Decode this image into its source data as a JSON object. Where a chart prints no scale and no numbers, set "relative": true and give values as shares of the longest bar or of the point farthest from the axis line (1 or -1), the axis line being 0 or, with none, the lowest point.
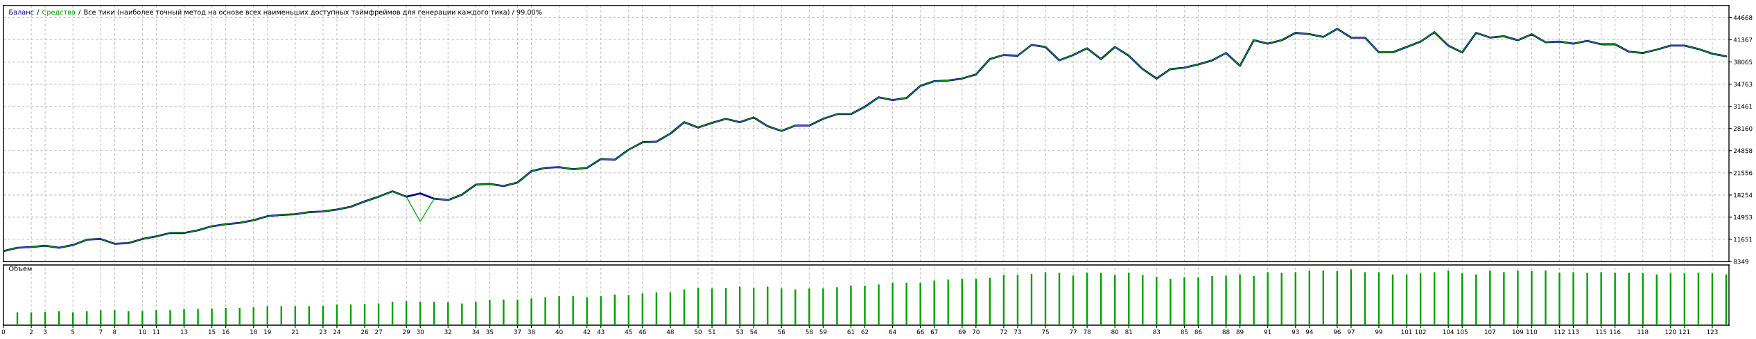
{
  "chart_data": [
    {
      "type": "line",
      "title": "Все тики (наиболее точный метод на основе всех наименьших доступных таймфреймов для генерации каждого тика) / 99.00%",
      "legend": "top left",
      "grid": true,
      "annotations": [
        "/",
        "/"
      ],
      "tick_labels": "y",
      "x": [
        0,
        1,
        2,
        3,
        4,
        5,
        6,
        7,
        8,
        9,
        10,
        11,
        12,
        13,
        14,
        15,
        16,
        17,
        18,
        19,
        20,
        21,
        22,
        23,
        24,
        25,
        26,
        27,
        28,
        29,
        30,
        31,
        32,
        33,
        34,
        35,
        36,
        37,
        38,
        39,
        40,
        41,
        42,
        43,
        44,
        45,
        46,
        47,
        48,
        49,
        50,
        51,
        52,
        53,
        54,
        55,
        56,
        57,
        58,
        59,
        60,
        61,
        62,
        63,
        64,
        65,
        66,
        67,
        68,
        69,
        70,
        71,
        72,
        73,
        74,
        75,
        76,
        77,
        78,
        79,
        80,
        81,
        82,
        83,
        84,
        85,
        86,
        87,
        88,
        89,
        90,
        91,
        92,
        93,
        94,
        95,
        96,
        97,
        98,
        99,
        100,
        101,
        102,
        103,
        104,
        105,
        106,
        107,
        108,
        109,
        110,
        111,
        112,
        113,
        114,
        115,
        116,
        117,
        118,
        119,
        120,
        121,
        122,
        123,
        124
      ],
      "series": [
        {
          "name": "Средства",
          "color": "#00a000",
          "values": [
            9900,
            10400,
            10500,
            10700,
            10400,
            10800,
            11600,
            11700,
            11000,
            11100,
            11700,
            12100,
            12600,
            12600,
            13000,
            13600,
            13900,
            14100,
            14500,
            15100,
            15300,
            15400,
            15700,
            15800,
            16100,
            16500,
            17300,
            18000,
            18800,
            18000,
            14300,
            17700,
            17500,
            18300,
            19800,
            19900,
            19600,
            20100,
            21800,
            22300,
            22400,
            22100,
            22300,
            23600,
            23500,
            25000,
            26100,
            26200,
            27400,
            29100,
            28300,
            29000,
            29600,
            29100,
            29800,
            28500,
            27800,
            28600,
            28600,
            29600,
            30300,
            30300,
            31400,
            32800,
            32400,
            32700,
            34500,
            35200,
            35300,
            35600,
            36200,
            38500,
            39100,
            39000,
            40600,
            40300,
            38300,
            39100,
            40100,
            38500,
            40300,
            39000,
            37000,
            35600,
            37000,
            37200,
            37700,
            38300,
            39400,
            37500,
            41300,
            40800,
            41300,
            42400,
            42200,
            41800,
            43000,
            41700,
            41700,
            39500,
            39500,
            40300,
            41100,
            42500,
            40500,
            39500,
            42400,
            41700,
            41900,
            41300,
            42200,
            41000,
            41100,
            40800,
            41200,
            40700,
            40700,
            39600,
            39400,
            39900,
            40500,
            40500,
            40000,
            39300,
            38900
          ]
        },
        {
          "name": "Баланс",
          "color": "#000080",
          "values": [
            9900,
            10400,
            10500,
            10700,
            10400,
            10800,
            11600,
            11700,
            11000,
            11100,
            11700,
            12100,
            12600,
            12600,
            13000,
            13600,
            13900,
            14100,
            14500,
            15100,
            15300,
            15400,
            15700,
            15800,
            16100,
            16500,
            17300,
            18000,
            18800,
            18000,
            18500,
            17700,
            17500,
            18300,
            19800,
            19900,
            19600,
            20100,
            21800,
            22300,
            22400,
            22100,
            22300,
            23600,
            23500,
            25000,
            26100,
            26200,
            27400,
            29100,
            28300,
            29000,
            29600,
            29100,
            29800,
            28500,
            27800,
            28600,
            28600,
            29600,
            30300,
            30300,
            31400,
            32800,
            32400,
            32700,
            34500,
            35200,
            35300,
            35600,
            36200,
            38500,
            39100,
            39000,
            40600,
            40300,
            38300,
            39100,
            40100,
            38500,
            40300,
            39000,
            37000,
            35600,
            37000,
            37200,
            37700,
            38300,
            39400,
            37500,
            41300,
            40800,
            41300,
            42400,
            42200,
            41800,
            43000,
            41700,
            41700,
            39500,
            39500,
            40300,
            41100,
            42500,
            40500,
            39500,
            42400,
            41700,
            41900,
            41300,
            42200,
            41000,
            41100,
            40800,
            41200,
            40700,
            40700,
            39600,
            39400,
            39900,
            40500,
            40500,
            40000,
            39300,
            38900
          ]
        }
      ],
      "xlim": [
        0,
        124.2
      ],
      "xticks": [
        0,
        2,
        3,
        5,
        7,
        8,
        10,
        11,
        13,
        15,
        16,
        18,
        19,
        21,
        23,
        24,
        26,
        27,
        29,
        30,
        32,
        34,
        35,
        37,
        38,
        40,
        42,
        43,
        45,
        46,
        48,
        50,
        51,
        53,
        54,
        56,
        58,
        59,
        61,
        62,
        64,
        66,
        67,
        69,
        70,
        72,
        73,
        75,
        77,
        78,
        80,
        81,
        83,
        85,
        86,
        88,
        89,
        91,
        93,
        94,
        96,
        97,
        99,
        101,
        102,
        104,
        105,
        107,
        109,
        110,
        112,
        113,
        115,
        116,
        118,
        120,
        121,
        123
      ],
      "ylim": [
        8349,
        46470
      ],
      "yticks": [
        8349,
        11651,
        14953,
        18254,
        21556,
        24858,
        28160,
        31461,
        34763,
        38065,
        41367,
        44668
      ]
    },
    {
      "type": "bar",
      "title": "Объем",
      "relative": true,
      "grid": "x",
      "tick_labels": "x",
      "color": "#00a000",
      "x": [
        1,
        2,
        3,
        4,
        5,
        6,
        7,
        8,
        9,
        10,
        11,
        12,
        13,
        14,
        15,
        16,
        17,
        18,
        19,
        20,
        21,
        22,
        23,
        24,
        25,
        26,
        27,
        28,
        29,
        30,
        31,
        32,
        33,
        34,
        35,
        36,
        37,
        38,
        39,
        40,
        41,
        42,
        43,
        44,
        45,
        46,
        47,
        48,
        49,
        50,
        51,
        52,
        53,
        54,
        55,
        56,
        57,
        58,
        59,
        60,
        61,
        62,
        63,
        64,
        65,
        66,
        67,
        68,
        69,
        70,
        71,
        72,
        73,
        74,
        75,
        76,
        77,
        78,
        79,
        80,
        81,
        82,
        83,
        84,
        85,
        86,
        87,
        88,
        89,
        90,
        91,
        92,
        93,
        94,
        95,
        96,
        97,
        98,
        99,
        100,
        101,
        102,
        103,
        104,
        105,
        106,
        107,
        108,
        109,
        110,
        111,
        112,
        113,
        114,
        115,
        116,
        117,
        118,
        119,
        120,
        121,
        122,
        123,
        124
      ],
      "values": [
        0.23,
        0.23,
        0.24,
        0.25,
        0.23,
        0.25,
        0.27,
        0.27,
        0.25,
        0.25,
        0.27,
        0.27,
        0.29,
        0.29,
        0.3,
        0.31,
        0.31,
        0.32,
        0.34,
        0.34,
        0.34,
        0.34,
        0.35,
        0.37,
        0.37,
        0.38,
        0.39,
        0.42,
        0.43,
        0.42,
        0.42,
        0.41,
        0.39,
        0.42,
        0.45,
        0.46,
        0.46,
        0.48,
        0.5,
        0.52,
        0.52,
        0.5,
        0.52,
        0.55,
        0.54,
        0.57,
        0.59,
        0.59,
        0.64,
        0.67,
        0.66,
        0.67,
        0.69,
        0.67,
        0.69,
        0.66,
        0.64,
        0.66,
        0.66,
        0.68,
        0.71,
        0.71,
        0.73,
        0.76,
        0.76,
        0.76,
        0.8,
        0.82,
        0.83,
        0.83,
        0.85,
        0.9,
        0.9,
        0.92,
        0.95,
        0.94,
        0.89,
        0.94,
        0.94,
        0.9,
        0.94,
        0.9,
        0.87,
        0.83,
        0.86,
        0.86,
        0.88,
        0.89,
        0.91,
        0.88,
        0.95,
        0.94,
        0.95,
        0.98,
        0.98,
        0.97,
        1,
        0.95,
        0.95,
        0.91,
        0.91,
        0.93,
        0.95,
        0.98,
        0.93,
        0.91,
        0.98,
        0.95,
        0.98,
        0.97,
        0.98,
        0.94,
        0.95,
        0.94,
        0.95,
        0.94,
        0.94,
        0.93,
        0.91,
        0.93,
        0.93,
        0.94,
        0.93,
        0.91
      ],
      "xlim": [
        0,
        124.2
      ],
      "xticks": [
        0,
        2,
        3,
        5,
        7,
        8,
        10,
        11,
        13,
        15,
        16,
        18,
        19,
        21,
        23,
        24,
        26,
        27,
        29,
        30,
        32,
        34,
        35,
        37,
        38,
        40,
        42,
        43,
        45,
        46,
        48,
        50,
        51,
        53,
        54,
        56,
        58,
        59,
        61,
        62,
        64,
        66,
        67,
        69,
        70,
        72,
        73,
        75,
        77,
        78,
        80,
        81,
        83,
        85,
        86,
        88,
        89,
        91,
        93,
        94,
        96,
        97,
        99,
        101,
        102,
        104,
        105,
        107,
        109,
        110,
        112,
        113,
        115,
        116,
        118,
        120,
        121,
        123
      ]
    }
  ]
}
